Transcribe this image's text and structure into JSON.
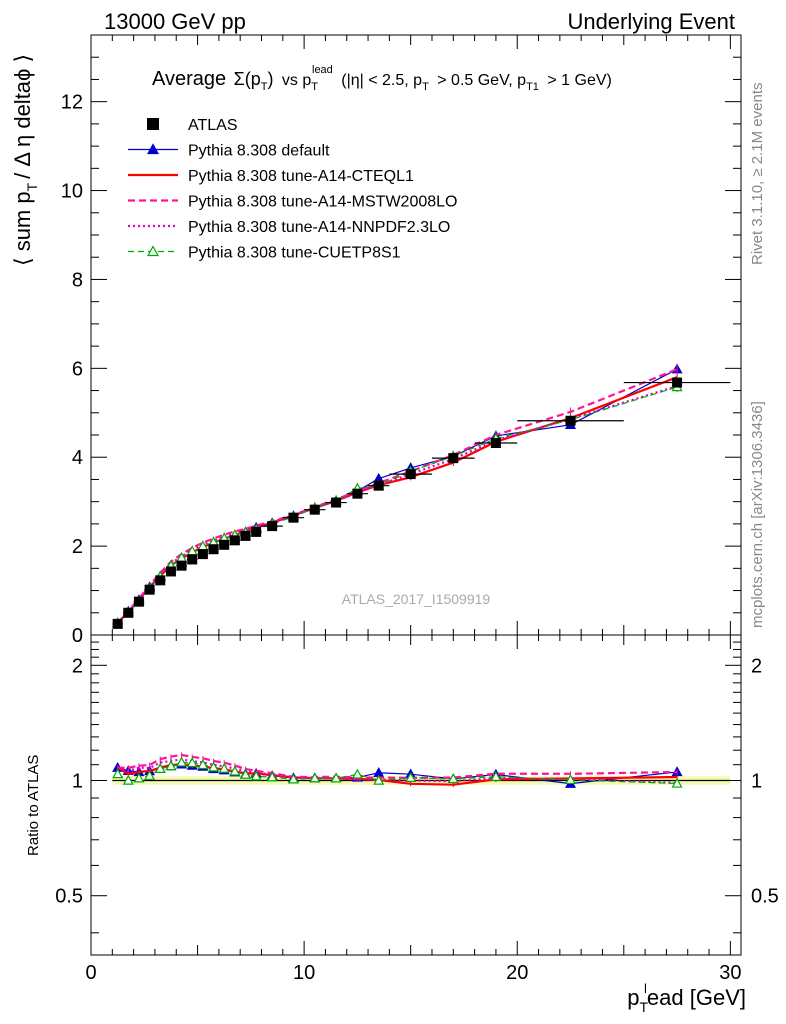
{
  "header": {
    "left": "13000 GeV pp",
    "right": "Underlying Event"
  },
  "side_labels": {
    "rivet": "Rivet 3.1.10, ≥ 2.1M events",
    "mcplots": "mcplots.cern.ch [arXiv:1306.3436]"
  },
  "chart_data": {
    "type": "line",
    "title_parts": {
      "average": "Average",
      "sigma": "Σ(p",
      "sub_T1": "T",
      "close": ")",
      "vs": "vs p",
      "sub_T2": "T",
      "sup_lead": "lead",
      "cut1": "(|η| < 2.5, p",
      "sub_T3": "T",
      "cut2": "> 0.5 GeV, p",
      "sub_T4": "T1",
      "cut3": "> 1 GeV)"
    },
    "ylabel_parts": {
      "a": "⟨ sum p",
      "sub": "T",
      "b": "/ Δ η deltaϕ ⟩"
    },
    "ratio_ylabel": "Ratio to ATLAS",
    "xlabel_parts": {
      "a": "p",
      "sub": "T",
      "sup": "l",
      "b": "ead [GeV]"
    },
    "watermark": "ATLAS_2017_I1509919",
    "xlim": [
      0,
      30.5
    ],
    "ylim": [
      0,
      13.5
    ],
    "ratio_ylim": [
      0.35,
      2.4
    ],
    "x_major_ticks": [
      0,
      10,
      20,
      30
    ],
    "x_tick_labels": [
      "0",
      "10",
      "20",
      "30"
    ],
    "y_major_ticks": [
      0,
      2,
      4,
      6,
      8,
      10,
      12
    ],
    "y_tick_labels": [
      "0",
      "2",
      "4",
      "6",
      "8",
      "10",
      "12"
    ],
    "ratio_major_ticks": [
      0.5,
      1,
      2
    ],
    "ratio_tick_labels": [
      "0.5",
      "1",
      "2"
    ],
    "x": [
      1.25,
      1.75,
      2.25,
      2.75,
      3.25,
      3.75,
      4.25,
      4.75,
      5.25,
      5.75,
      6.25,
      6.75,
      7.25,
      7.75,
      8.5,
      9.5,
      10.5,
      11.5,
      12.5,
      13.5,
      15.0,
      17.0,
      19.0,
      22.5,
      27.5
    ],
    "x_err": [
      0.25,
      0.25,
      0.25,
      0.25,
      0.25,
      0.25,
      0.25,
      0.25,
      0.25,
      0.25,
      0.25,
      0.25,
      0.25,
      0.25,
      0.5,
      0.5,
      0.5,
      0.5,
      0.5,
      0.5,
      1.0,
      1.0,
      1.0,
      2.5,
      2.5
    ],
    "series": [
      {
        "name": "ATLAS",
        "color": "#000000",
        "style": "data",
        "values": [
          0.25,
          0.5,
          0.75,
          1.02,
          1.23,
          1.43,
          1.56,
          1.7,
          1.82,
          1.93,
          2.03,
          2.13,
          2.23,
          2.32,
          2.45,
          2.64,
          2.82,
          2.98,
          3.18,
          3.36,
          3.62,
          3.98,
          4.32,
          4.82,
          5.68
        ]
      },
      {
        "name": "Pythia 8.308 default",
        "color": "#0000cc",
        "style": "solid-thin",
        "marker": "triangle",
        "values": [
          0.27,
          0.53,
          0.79,
          1.08,
          1.32,
          1.56,
          1.72,
          1.86,
          1.98,
          2.07,
          2.16,
          2.24,
          2.32,
          2.42,
          2.52,
          2.68,
          2.86,
          3.02,
          3.24,
          3.52,
          3.76,
          4.02,
          4.48,
          4.73,
          5.98
        ]
      },
      {
        "name": "Pythia 8.308 tune-A14-CTEQL1",
        "color": "#ff0000",
        "style": "solid",
        "values": [
          0.27,
          0.52,
          0.79,
          1.08,
          1.33,
          1.57,
          1.72,
          1.86,
          1.98,
          2.08,
          2.17,
          2.25,
          2.33,
          2.42,
          2.53,
          2.69,
          2.86,
          3.02,
          3.21,
          3.37,
          3.55,
          3.88,
          4.35,
          4.88,
          5.8
        ]
      },
      {
        "name": "Pythia 8.308 tune-A14-MSTW2008LO",
        "color": "#ff1493",
        "style": "dashed",
        "values": [
          0.27,
          0.54,
          0.82,
          1.12,
          1.4,
          1.65,
          1.82,
          1.96,
          2.08,
          2.17,
          2.26,
          2.33,
          2.39,
          2.46,
          2.56,
          2.7,
          2.88,
          3.05,
          3.24,
          3.42,
          3.68,
          4.05,
          4.5,
          5.02,
          5.98
        ]
      },
      {
        "name": "Pythia 8.308 tune-A14-NNPDF2.3LO",
        "color": "#dd00cc",
        "style": "dotted",
        "values": [
          0.27,
          0.53,
          0.81,
          1.1,
          1.37,
          1.61,
          1.77,
          1.91,
          2.03,
          2.12,
          2.21,
          2.29,
          2.36,
          2.43,
          2.54,
          2.69,
          2.86,
          3.02,
          3.2,
          3.38,
          3.62,
          3.96,
          4.38,
          4.86,
          5.6
        ]
      },
      {
        "name": "Pythia 8.308 tune-CUETP8S1",
        "color": "#00aa00",
        "style": "dashed-thin",
        "marker": "triangle-open",
        "values": [
          0.26,
          0.5,
          0.76,
          1.05,
          1.32,
          1.56,
          1.74,
          1.89,
          2.0,
          2.09,
          2.18,
          2.25,
          2.31,
          2.38,
          2.5,
          2.66,
          2.86,
          3.02,
          3.3,
          3.36,
          3.68,
          4.02,
          4.42,
          4.84,
          5.58
        ]
      }
    ]
  }
}
